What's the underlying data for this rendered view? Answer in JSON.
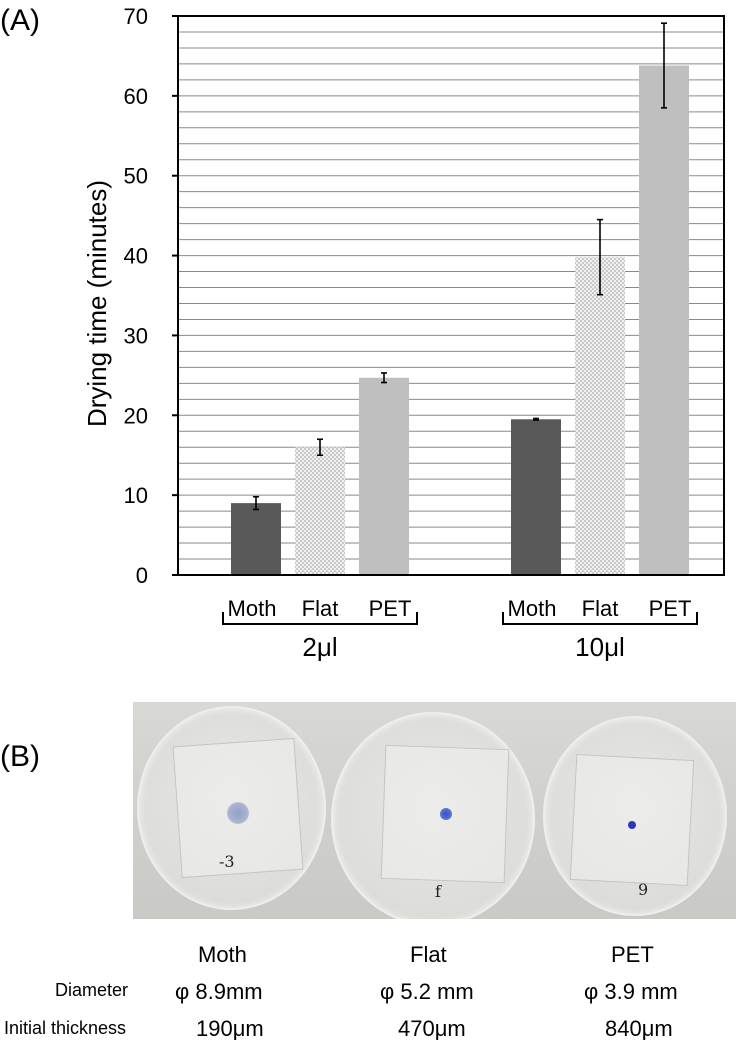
{
  "panel_a_label": "(A)",
  "panel_b_label": "(B)",
  "chart_data": {
    "type": "bar",
    "ylabel": "Drying time (minutes)",
    "ylim": [
      0,
      70
    ],
    "yticks": [
      "0",
      "10",
      "20",
      "30",
      "40",
      "50",
      "60",
      "70"
    ],
    "minor_grid_step": 2,
    "groups": [
      {
        "name": "2μl",
        "categories": [
          "Moth",
          "Flat",
          "PET"
        ],
        "values": [
          9.0,
          16.0,
          24.7
        ],
        "errors": [
          0.8,
          1.0,
          0.6
        ]
      },
      {
        "name": "10μl",
        "categories": [
          "Moth",
          "Flat",
          "PET"
        ],
        "values": [
          19.5,
          39.8,
          63.8
        ],
        "errors": [
          0.1,
          4.7,
          5.3
        ]
      }
    ],
    "bar_colors": [
      "#595959",
      "#e6e6e6",
      "#bfbfbf"
    ]
  },
  "photo": {
    "description_marks": [
      "-3",
      "f",
      "9"
    ]
  },
  "table": {
    "columns": [
      "Moth",
      "Flat",
      "PET"
    ],
    "rows": [
      {
        "label": "Diameter",
        "values": [
          "φ 8.9mm",
          "φ 5.2 mm",
          "φ 3.9 mm"
        ]
      },
      {
        "label": "Initial thickness",
        "values": [
          "190μm",
          "470μm",
          "840μm"
        ]
      }
    ]
  }
}
